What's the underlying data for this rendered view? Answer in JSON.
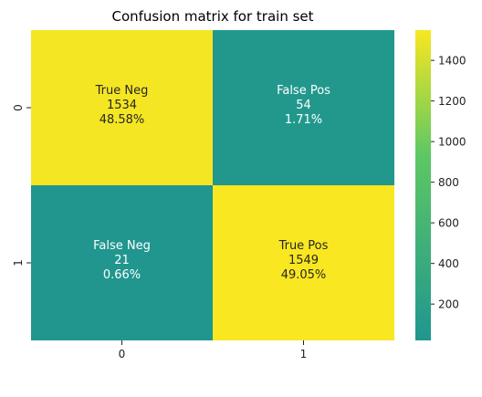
{
  "chart_data": {
    "type": "heatmap",
    "title": "Confusion matrix for train set",
    "xlabel": "",
    "ylabel": "",
    "x_categories": [
      "0",
      "1"
    ],
    "y_categories": [
      "0",
      "1"
    ],
    "values": [
      [
        1534,
        54
      ],
      [
        21,
        1549
      ]
    ],
    "cells": [
      [
        {
          "name": "True Neg",
          "count": "1534",
          "percent": "48.58%"
        },
        {
          "name": "False Pos",
          "count": "54",
          "percent": "1.71%"
        }
      ],
      [
        {
          "name": "False Neg",
          "count": "21",
          "percent": "0.66%"
        },
        {
          "name": "True Pos",
          "count": "1549",
          "percent": "49.05%"
        }
      ]
    ],
    "colorbar": {
      "range": [
        21,
        1549
      ],
      "ticks": [
        "200",
        "400",
        "600",
        "800",
        "1000",
        "1200",
        "1400"
      ],
      "tick_values": [
        200,
        400,
        600,
        800,
        1000,
        1200,
        1400
      ],
      "colors": {
        "low": "#20968f",
        "high": "#f9e721"
      }
    },
    "grid": false,
    "legend": "colorbar-right"
  }
}
